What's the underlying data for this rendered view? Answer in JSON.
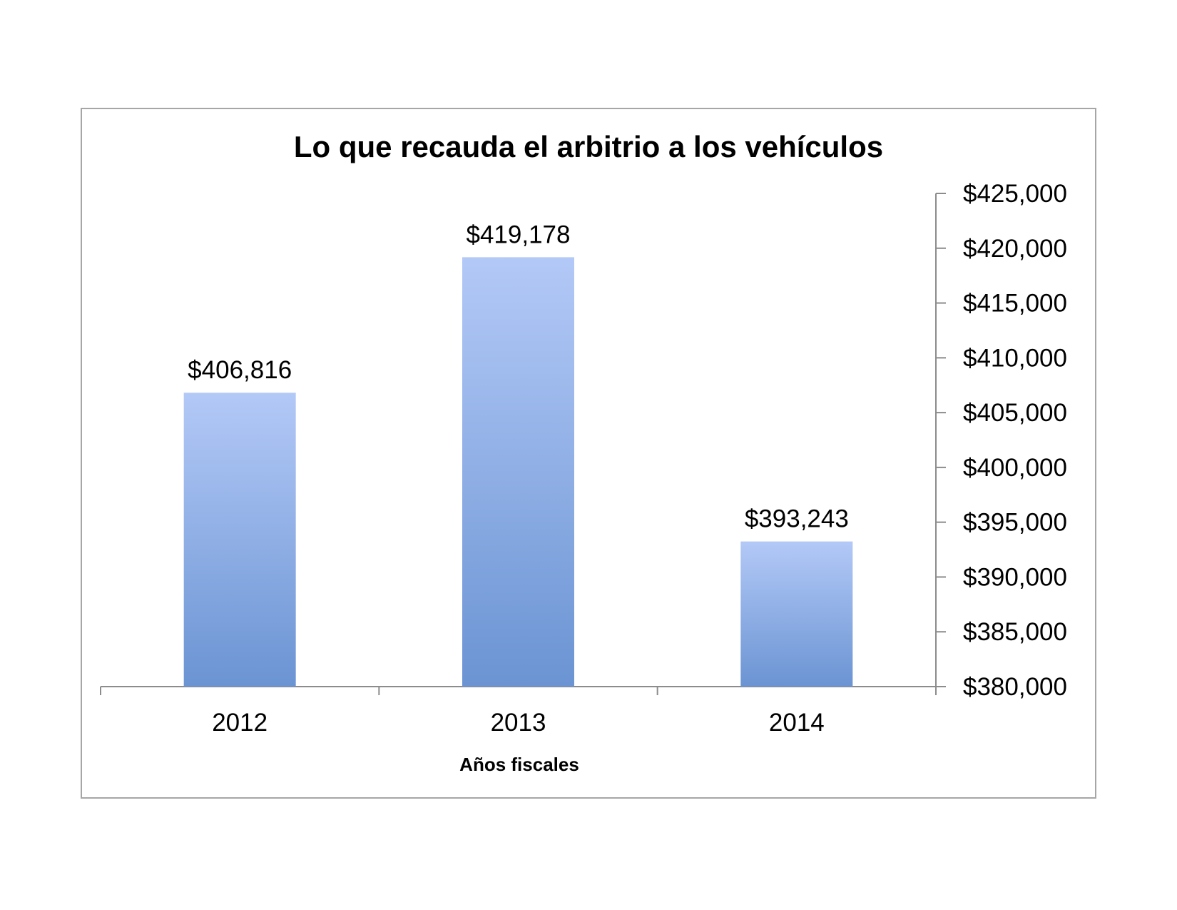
{
  "chart_data": {
    "type": "bar",
    "title": "Lo que recauda el arbitrio a los vehículos",
    "xlabel": "Años fiscales",
    "ylabel": "",
    "categories": [
      "2012",
      "2013",
      "2014"
    ],
    "values": [
      406816,
      419178,
      393243
    ],
    "data_labels": [
      "$406,816",
      "$419,178",
      "$393,243"
    ],
    "ylim": [
      380000,
      425000
    ],
    "yticks": [
      380000,
      385000,
      390000,
      395000,
      400000,
      405000,
      410000,
      415000,
      420000,
      425000
    ],
    "ytick_labels": [
      "$380,000",
      "$385,000",
      "$390,000",
      "$395,000",
      "$400,000",
      "$405,000",
      "$410,000",
      "$415,000",
      "$420,000",
      "$425,000"
    ],
    "y_axis_side": "right",
    "grid": false,
    "legend": "none",
    "colors": {
      "bar_top": "#b3c9f7",
      "bar_bottom": "#6b94d3"
    }
  }
}
